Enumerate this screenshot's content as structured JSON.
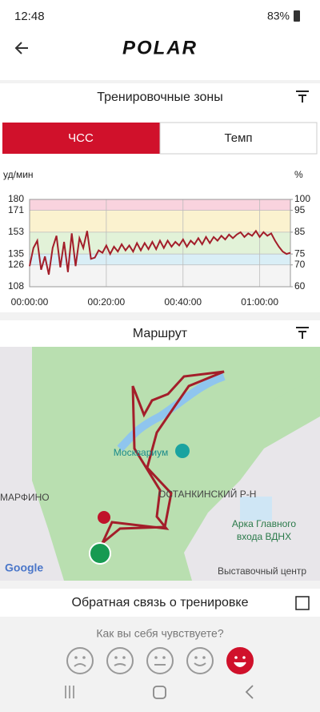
{
  "status_bar": {
    "time": "12:48",
    "battery": "83%"
  },
  "header": {
    "logo": "POLAR"
  },
  "zones_section": {
    "title": "Тренировочные зоны",
    "tabs": [
      "ЧСС",
      "Темп"
    ]
  },
  "chart_data": {
    "type": "line",
    "y_label": "уд/мин",
    "y2_label": "%",
    "x": [
      0,
      60,
      120,
      180,
      240,
      300,
      360,
      420,
      480,
      540,
      600,
      660,
      720,
      780,
      840,
      900,
      960,
      1020,
      1080,
      1140,
      1200,
      1260,
      1320,
      1380,
      1440,
      1500,
      1560,
      1620,
      1680,
      1740,
      1800,
      1860,
      1920,
      1980,
      2040,
      2100,
      2160,
      2220,
      2280,
      2340,
      2400,
      2460,
      2520,
      2580,
      2640,
      2700,
      2760,
      2820,
      2880,
      2940,
      3000,
      3060,
      3120,
      3180,
      3240,
      3300,
      3360,
      3420,
      3480,
      3540,
      3600,
      3660,
      3720,
      3780,
      3840,
      3900,
      3960,
      4020,
      4080
    ],
    "series": [
      {
        "name": "ЧСС",
        "color": "#a31e2a",
        "values": [
          125,
          140,
          146,
          122,
          133,
          118,
          140,
          150,
          124,
          145,
          120,
          152,
          125,
          148,
          140,
          154,
          131,
          132,
          138,
          136,
          142,
          135,
          141,
          137,
          143,
          138,
          142,
          137,
          144,
          138,
          144,
          139,
          145,
          139,
          146,
          140,
          146,
          141,
          145,
          142,
          147,
          141,
          146,
          143,
          148,
          143,
          149,
          144,
          149,
          146,
          150,
          147,
          151,
          148,
          151,
          153,
          149,
          152,
          150,
          154,
          149,
          153,
          150,
          152,
          146,
          141,
          137,
          135,
          136
        ]
      }
    ],
    "xlim": [
      0,
      4080
    ],
    "xticks": [
      {
        "value": 0,
        "label": "00:00:00"
      },
      {
        "value": 1200,
        "label": "00:20:00"
      },
      {
        "value": 2400,
        "label": "00:40:00"
      },
      {
        "value": 3600,
        "label": "01:00:00"
      }
    ],
    "ylim": [
      108,
      180
    ],
    "yticks": [
      108,
      126,
      135,
      153,
      171,
      180
    ],
    "y2lim": [
      60,
      100
    ],
    "y2ticks": [
      60,
      70,
      75,
      85,
      95,
      100
    ],
    "zone_colors": [
      "#f4f4f4",
      "#d9eef6",
      "#e2f2d8",
      "#fbf2cf",
      "#f9d3de"
    ],
    "grid": true
  },
  "route_section": {
    "title": "Маршрут"
  },
  "map": {
    "labels": [
      "Москвариум",
      "МАРФИНО",
      "ОСТАНКИНСКИЙ Р-Н",
      "Арка Главного",
      "входа ВДНХ",
      "Выставочный центр",
      "Google"
    ]
  },
  "feedback_section": {
    "title": "Обратная связь о тренировке",
    "question": "Как вы себя чувствуете?"
  }
}
